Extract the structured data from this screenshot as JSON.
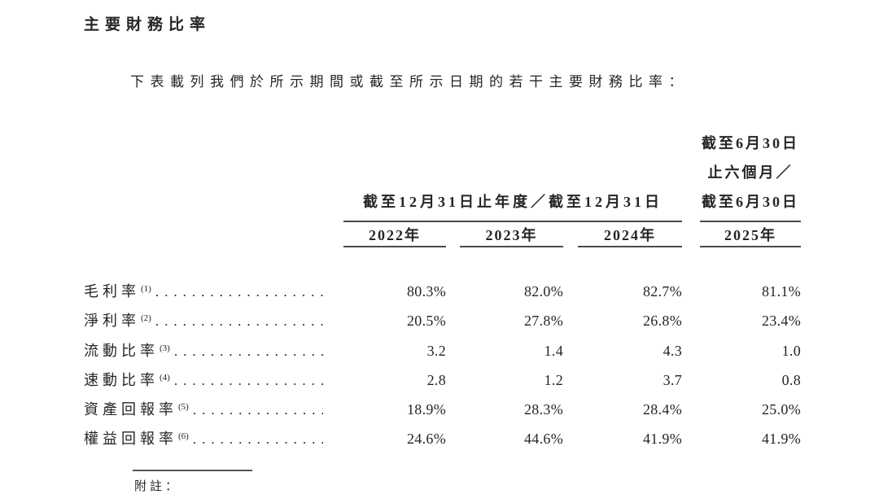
{
  "page": {
    "title": "主要財務比率",
    "intro": "下表載列我們於所示期間或截至所示日期的若干主要財務比率："
  },
  "table": {
    "col_group_header": "截至12月31日止年度／截至12月31日",
    "right_header_lines": [
      "截至6月30日",
      "止六個月／",
      "截至6月30日"
    ],
    "year_headers": [
      "2022年",
      "2023年",
      "2024年",
      "2025年"
    ],
    "dot_leader": "........................................................",
    "rows": [
      {
        "label": "毛利率",
        "footnote": "(1)",
        "values": [
          "80.3%",
          "82.0%",
          "82.7%",
          "81.1%"
        ]
      },
      {
        "label": "淨利率",
        "footnote": "(2)",
        "values": [
          "20.5%",
          "27.8%",
          "26.8%",
          "23.4%"
        ]
      },
      {
        "label": "流動比率",
        "footnote": "(3)",
        "values": [
          "3.2",
          "1.4",
          "4.3",
          "1.0"
        ]
      },
      {
        "label": "速動比率",
        "footnote": "(4)",
        "values": [
          "2.8",
          "1.2",
          "3.7",
          "0.8"
        ]
      },
      {
        "label": "資產回報率",
        "footnote": "(5)",
        "values": [
          "18.9%",
          "28.3%",
          "28.4%",
          "25.0%"
        ]
      },
      {
        "label": "權益回報率",
        "footnote": "(6)",
        "values": [
          "24.6%",
          "44.6%",
          "41.9%",
          "41.9%"
        ]
      }
    ]
  },
  "footnotes": {
    "label": "附註："
  },
  "colors": {
    "text": "#252525",
    "rule": "#4a4a4a"
  }
}
